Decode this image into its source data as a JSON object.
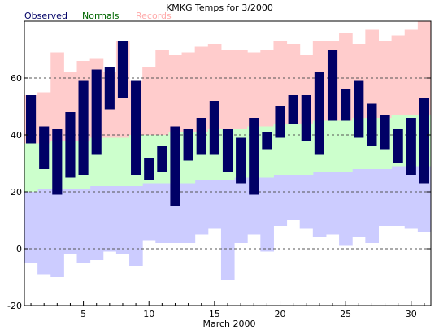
{
  "chart_data": {
    "type": "bar",
    "title": "KMKG Temps for 3/2000",
    "xlabel": "March 2000",
    "ylabel": "",
    "xlim": [
      0.5,
      31.5
    ],
    "ylim": [
      -20,
      80
    ],
    "x_ticks": [
      5,
      10,
      15,
      20,
      25,
      30
    ],
    "y_ticks": [
      -20,
      0,
      20,
      40,
      60
    ],
    "gridlines_y": [
      0,
      20,
      40,
      60
    ],
    "legend": {
      "placement": "top-left",
      "entries": [
        {
          "name": "Observed",
          "color": "#000066"
        },
        {
          "name": "Normals",
          "color": "#006600"
        },
        {
          "name": "Records",
          "color": "#ffaaaa"
        }
      ]
    },
    "colors": {
      "observed": "#000066",
      "normals": "#ccffcc",
      "record_high_band": "#ffcccc",
      "record_low_band": "#ccccff",
      "gridline": "#555555"
    },
    "days": [
      1,
      2,
      3,
      4,
      5,
      6,
      7,
      8,
      9,
      10,
      11,
      12,
      13,
      14,
      15,
      16,
      17,
      18,
      19,
      20,
      21,
      22,
      23,
      24,
      25,
      26,
      27,
      28,
      29,
      30,
      31
    ],
    "observed_high": [
      54,
      43,
      42,
      48,
      59,
      63,
      64,
      73,
      59,
      32,
      36,
      43,
      42,
      46,
      52,
      42,
      39,
      46,
      41,
      50,
      54,
      54,
      62,
      70,
      56,
      59,
      51,
      47,
      42,
      46,
      53
    ],
    "observed_low": [
      37,
      28,
      19,
      25,
      26,
      33,
      49,
      53,
      26,
      24,
      27,
      15,
      31,
      33,
      33,
      27,
      23,
      19,
      35,
      39,
      44,
      38,
      33,
      45,
      45,
      39,
      36,
      35,
      30,
      26,
      23
    ],
    "normal_high": [
      37,
      37,
      38,
      38,
      38,
      39,
      39,
      39,
      40,
      40,
      40,
      41,
      41,
      41,
      42,
      42,
      42,
      43,
      43,
      44,
      44,
      44,
      45,
      45,
      45,
      46,
      46,
      46,
      47,
      47,
      47
    ],
    "normal_low": [
      20,
      21,
      21,
      21,
      21,
      22,
      22,
      22,
      22,
      23,
      23,
      23,
      23,
      24,
      24,
      24,
      25,
      25,
      25,
      26,
      26,
      26,
      27,
      27,
      27,
      28,
      28,
      28,
      29,
      29,
      29
    ],
    "record_high": [
      54,
      55,
      69,
      62,
      66,
      67,
      62,
      73,
      59,
      64,
      70,
      68,
      69,
      71,
      72,
      70,
      70,
      69,
      70,
      73,
      72,
      68,
      73,
      73,
      76,
      72,
      77,
      73,
      75,
      77,
      80
    ],
    "record_low": [
      -5,
      -9,
      -10,
      -2,
      -5,
      -4,
      -1,
      -2,
      -6,
      3,
      2,
      2,
      2,
      5,
      7,
      -11,
      2,
      5,
      -1,
      8,
      10,
      7,
      4,
      5,
      1,
      4,
      2,
      8,
      8,
      7,
      6
    ]
  }
}
